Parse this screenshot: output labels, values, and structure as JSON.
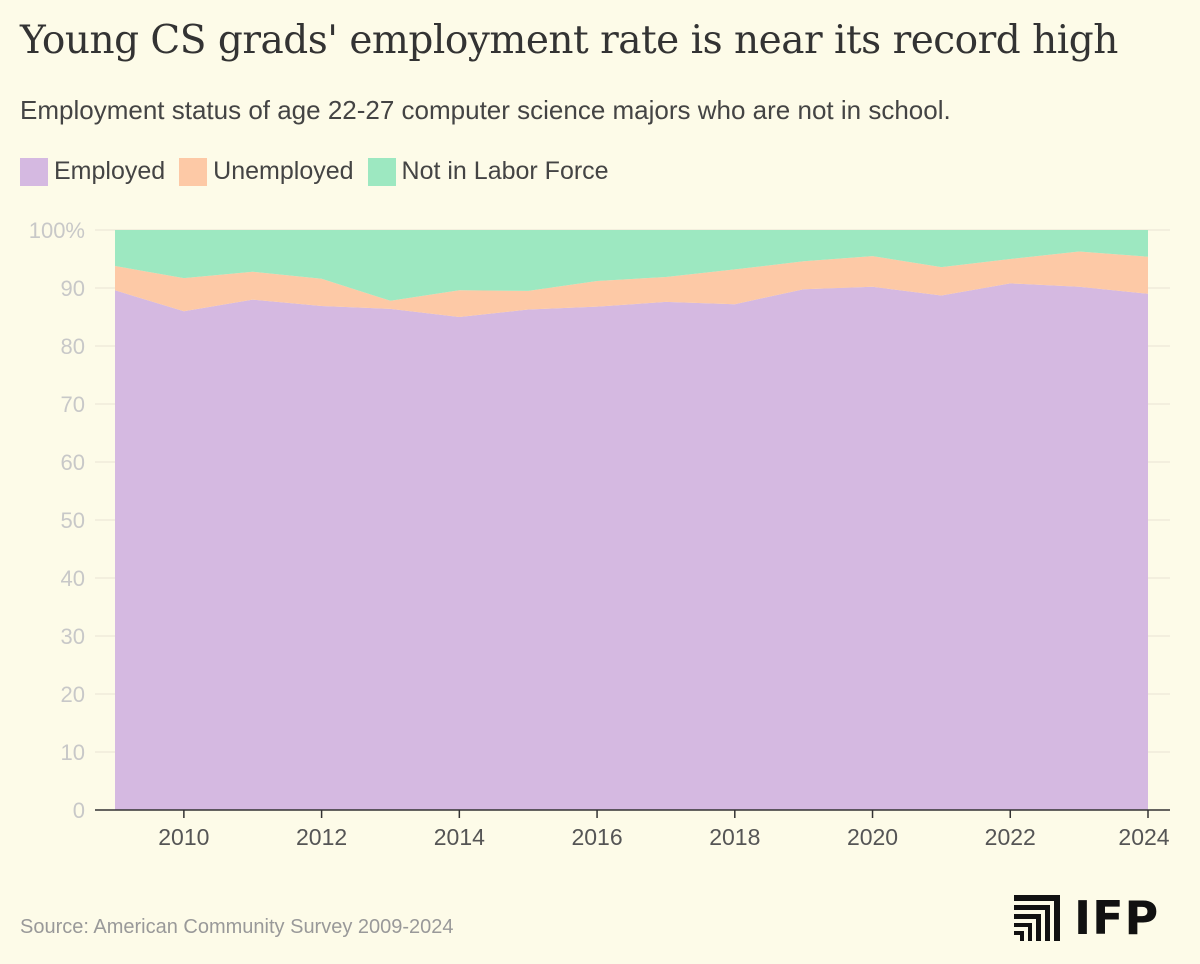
{
  "header": {
    "title": "Young CS grads' employment rate is near its record high",
    "subtitle": "Employment status of age 22-27 computer science majors who are not in school."
  },
  "colors": {
    "background": "#fdfbe8",
    "employed": "#d5b9e1",
    "unemployed": "#fdc9a6",
    "not_in_labor_force": "#9de8c1",
    "grid": "#e3dccf",
    "tick": "#c8c8c8",
    "axis": "#333333"
  },
  "legend": [
    {
      "label": "Employed",
      "color": "#d5b9e1"
    },
    {
      "label": "Unemployed",
      "color": "#fdc9a6"
    },
    {
      "label": "Not in Labor Force",
      "color": "#9de8c1"
    }
  ],
  "footer": {
    "source": "Source: American Community Survey 2009-2024",
    "logo_text": "IFP",
    "logo_icon": "stepped-bars-icon"
  },
  "chart_data": {
    "type": "area",
    "stacked": true,
    "x": [
      2009,
      2010,
      2011,
      2012,
      2013,
      2014,
      2015,
      2016,
      2017,
      2018,
      2019,
      2020,
      2021,
      2022,
      2023,
      2024
    ],
    "series": [
      {
        "name": "Employed",
        "values": [
          89.6,
          86.0,
          88.0,
          86.9,
          86.4,
          85.0,
          86.3,
          86.8,
          87.6,
          87.2,
          89.8,
          90.2,
          88.7,
          90.8,
          90.2,
          89.0
        ]
      },
      {
        "name": "Unemployed",
        "values": [
          4.2,
          5.7,
          4.8,
          4.7,
          1.4,
          4.6,
          3.2,
          4.4,
          4.3,
          6.0,
          4.8,
          5.3,
          4.9,
          4.2,
          6.1,
          6.4
        ]
      },
      {
        "name": "Not in Labor Force",
        "values": [
          6.2,
          8.3,
          7.2,
          8.4,
          12.2,
          10.4,
          10.5,
          8.8,
          8.1,
          6.8,
          5.4,
          4.5,
          6.4,
          5.0,
          3.7,
          4.6
        ]
      }
    ],
    "xticks": [
      2010,
      2012,
      2014,
      2016,
      2018,
      2020,
      2022,
      2024
    ],
    "yticks": [
      0,
      10,
      20,
      30,
      40,
      50,
      60,
      70,
      80,
      90,
      100
    ],
    "ytick_labels": [
      "0",
      "10",
      "20",
      "30",
      "40",
      "50",
      "60",
      "70",
      "80",
      "90",
      "100%"
    ],
    "xlim": [
      2009,
      2024
    ],
    "ylim": [
      0,
      100
    ],
    "grid": true,
    "legend_position": "top-left"
  }
}
